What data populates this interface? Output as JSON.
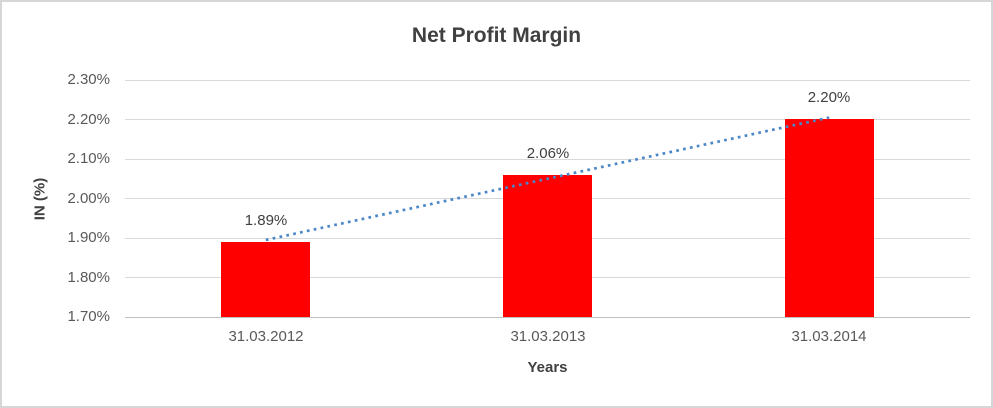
{
  "chart_data": {
    "type": "bar",
    "title": "Net Profit Margin",
    "xlabel": "Years",
    "ylabel": "IN (%)",
    "categories": [
      "31.03.2012",
      "31.03.2013",
      "31.03.2014"
    ],
    "series": [
      {
        "name": "Net Profit Margin",
        "values": [
          1.89,
          2.06,
          2.2
        ]
      }
    ],
    "data_labels": [
      "1.89%",
      "2.06%",
      "2.20%"
    ],
    "y_ticks": [
      "2.30%",
      "2.20%",
      "2.10%",
      "2.00%",
      "1.90%",
      "1.80%",
      "1.70%"
    ],
    "y_tick_values": [
      2.3,
      2.2,
      2.1,
      2.0,
      1.9,
      1.8,
      1.7
    ],
    "ylim": [
      1.7,
      2.3
    ],
    "grid": true,
    "legend": "none",
    "trendline": {
      "type": "linear",
      "style": "dotted",
      "color": "#4a86c8"
    },
    "colors": {
      "bar": "#ff0000",
      "gridline": "#d9d9d9",
      "axis_line": "#bfbfbf",
      "title_text": "#404040",
      "tick_text": "#595959",
      "data_label_text": "#404040"
    }
  }
}
